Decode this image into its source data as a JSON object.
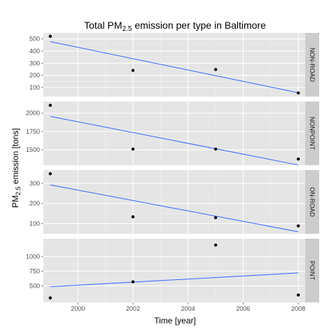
{
  "chart_data": {
    "type": "scatter",
    "title_main": "Total PM",
    "title_sub": "2.5",
    "title_rest": " emission per type in Baltimore",
    "xlabel": "Time [year]",
    "ylabel_main": "PM",
    "ylabel_sub": "2.5",
    "ylabel_rest": " emission [tons]",
    "xlim": [
      1998.75,
      2008.25
    ],
    "x_ticks": [
      2000,
      2002,
      2004,
      2006,
      2008
    ],
    "x_tick_labels": [
      "2000",
      "2002",
      "2004",
      "2006",
      "2008"
    ],
    "grid": true,
    "point_color": "#000000",
    "trend_color": "#3366ff",
    "panel_bg": "#e5e5e5",
    "strip_bg": "#cccccc",
    "grid_color": "#ffffff",
    "panels": [
      {
        "strip": "NON-ROAD",
        "ylim": [
          25,
          550
        ],
        "y_ticks": [
          100,
          200,
          300,
          400,
          500
        ],
        "y_tick_labels": [
          "100",
          "200",
          "300",
          "400",
          "500"
        ],
        "points": [
          {
            "x": 1999,
            "y": 522
          },
          {
            "x": 2002,
            "y": 241
          },
          {
            "x": 2005,
            "y": 248
          },
          {
            "x": 2008,
            "y": 55
          }
        ],
        "trend": [
          {
            "x": 1999,
            "y": 478
          },
          {
            "x": 2008,
            "y": 57
          }
        ]
      },
      {
        "strip": "NONPOINT",
        "ylim": [
          1290,
          2160
        ],
        "y_ticks": [
          1500,
          1750,
          2000
        ],
        "y_tick_labels": [
          "1500",
          "1750",
          "2000"
        ],
        "points": [
          {
            "x": 1999,
            "y": 2108
          },
          {
            "x": 2002,
            "y": 1510
          },
          {
            "x": 2005,
            "y": 1510
          },
          {
            "x": 2008,
            "y": 1374
          }
        ],
        "trend": [
          {
            "x": 1999,
            "y": 1957
          },
          {
            "x": 2008,
            "y": 1293
          }
        ]
      },
      {
        "strip": "ON-ROAD",
        "ylim": [
          50,
          365
        ],
        "y_ticks": [
          100,
          200,
          300
        ],
        "y_tick_labels": [
          "100",
          "200",
          "300"
        ],
        "points": [
          {
            "x": 1999,
            "y": 347
          },
          {
            "x": 2002,
            "y": 134
          },
          {
            "x": 2005,
            "y": 130
          },
          {
            "x": 2008,
            "y": 89
          }
        ],
        "trend": [
          {
            "x": 1999,
            "y": 292
          },
          {
            "x": 2008,
            "y": 60
          }
        ]
      },
      {
        "strip": "POINT",
        "ylim": [
          220,
          1300
        ],
        "y_ticks": [
          500,
          750,
          1000
        ],
        "y_tick_labels": [
          "500",
          "750",
          "1000"
        ],
        "points": [
          {
            "x": 1999,
            "y": 296
          },
          {
            "x": 2002,
            "y": 569
          },
          {
            "x": 2005,
            "y": 1193
          },
          {
            "x": 2008,
            "y": 345
          }
        ],
        "trend": [
          {
            "x": 1999,
            "y": 486
          },
          {
            "x": 2008,
            "y": 720
          }
        ]
      }
    ]
  }
}
